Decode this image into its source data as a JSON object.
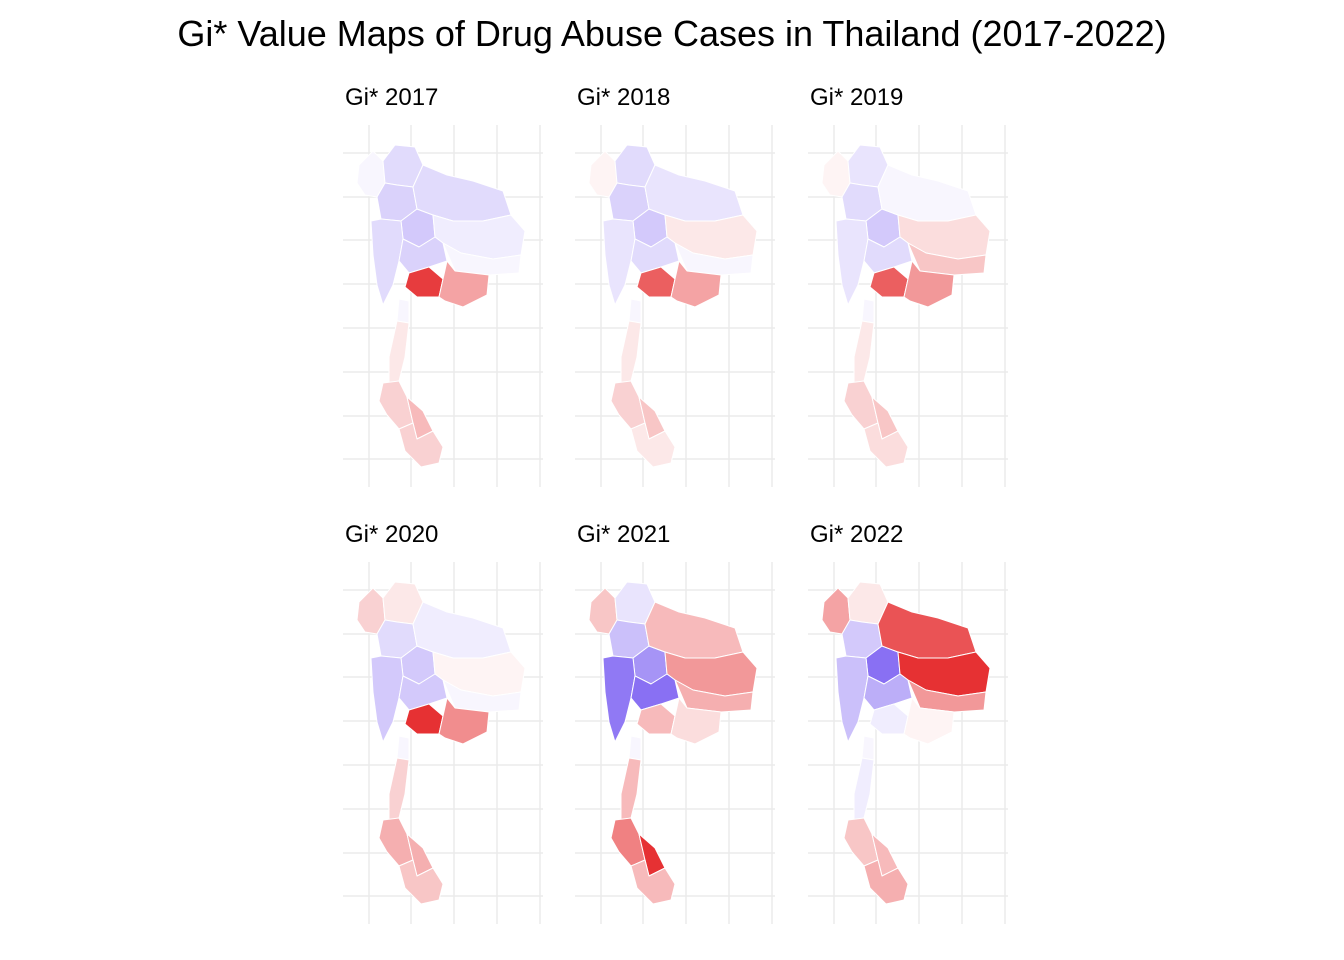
{
  "title": "Gi* Value Maps of Drug Abuse Cases in Thailand (2017-2022)",
  "colors": {
    "negative": "#6b4cf0",
    "neutral": "#ffffff",
    "positive": "#e31a1c",
    "grid": "#ebebeb",
    "border": "#ffffff"
  },
  "chart_data": [
    {
      "type": "map",
      "title": "Gi* 2017",
      "regions": {
        "north_west": -0.05,
        "north": -0.2,
        "north_central": -0.25,
        "upper_central": -0.3,
        "northeast_north": -0.2,
        "northeast_central": -0.1,
        "northeast_south": -0.05,
        "west": -0.2,
        "central": -0.25,
        "bangkok": 0.85,
        "east": 0.4,
        "south_upper": 0.1,
        "south_middle": 0.2,
        "south_lower": 0.3,
        "deep_south": 0.2
      }
    },
    {
      "type": "map",
      "title": "Gi* 2018",
      "regions": {
        "north_west": 0.05,
        "north": -0.2,
        "north_central": -0.25,
        "upper_central": -0.3,
        "northeast_north": -0.15,
        "northeast_central": 0.1,
        "northeast_south": -0.05,
        "west": -0.15,
        "central": -0.2,
        "bangkok": 0.7,
        "east": 0.4,
        "south_upper": 0.1,
        "south_middle": 0.2,
        "south_lower": 0.25,
        "deep_south": 0.1
      }
    },
    {
      "type": "map",
      "title": "Gi* 2019",
      "regions": {
        "north_west": 0.05,
        "north": -0.15,
        "north_central": -0.2,
        "upper_central": -0.3,
        "northeast_north": -0.05,
        "northeast_central": 0.15,
        "northeast_south": 0.25,
        "west": -0.15,
        "central": -0.2,
        "bangkok": 0.7,
        "east": 0.45,
        "south_upper": 0.1,
        "south_middle": 0.2,
        "south_lower": 0.25,
        "deep_south": 0.15
      }
    },
    {
      "type": "map",
      "title": "Gi* 2020",
      "regions": {
        "north_west": 0.2,
        "north": 0.1,
        "north_central": -0.2,
        "upper_central": -0.3,
        "northeast_north": -0.1,
        "northeast_central": 0.05,
        "northeast_south": -0.05,
        "west": -0.3,
        "central": -0.3,
        "bangkok": 0.9,
        "east": 0.5,
        "south_upper": 0.2,
        "south_middle": 0.35,
        "south_lower": 0.35,
        "deep_south": 0.25
      }
    },
    {
      "type": "map",
      "title": "Gi* 2021",
      "regions": {
        "north_west": 0.25,
        "north": -0.15,
        "north_central": -0.35,
        "upper_central": -0.6,
        "northeast_north": 0.3,
        "northeast_central": 0.45,
        "northeast_south": 0.35,
        "west": -0.75,
        "central": -0.8,
        "bangkok": 0.3,
        "east": 0.15,
        "south_upper": 0.3,
        "south_middle": 0.55,
        "south_lower": 0.9,
        "deep_south": 0.3
      }
    },
    {
      "type": "map",
      "title": "Gi* 2022",
      "regions": {
        "north_west": 0.4,
        "north": 0.1,
        "north_central": -0.3,
        "upper_central": -0.8,
        "northeast_north": 0.75,
        "northeast_central": 0.9,
        "northeast_south": 0.45,
        "west": -0.35,
        "central": -0.45,
        "bangkok": -0.1,
        "east": 0.05,
        "south_upper": -0.1,
        "south_middle": 0.25,
        "south_lower": 0.3,
        "deep_south": 0.35
      }
    }
  ]
}
